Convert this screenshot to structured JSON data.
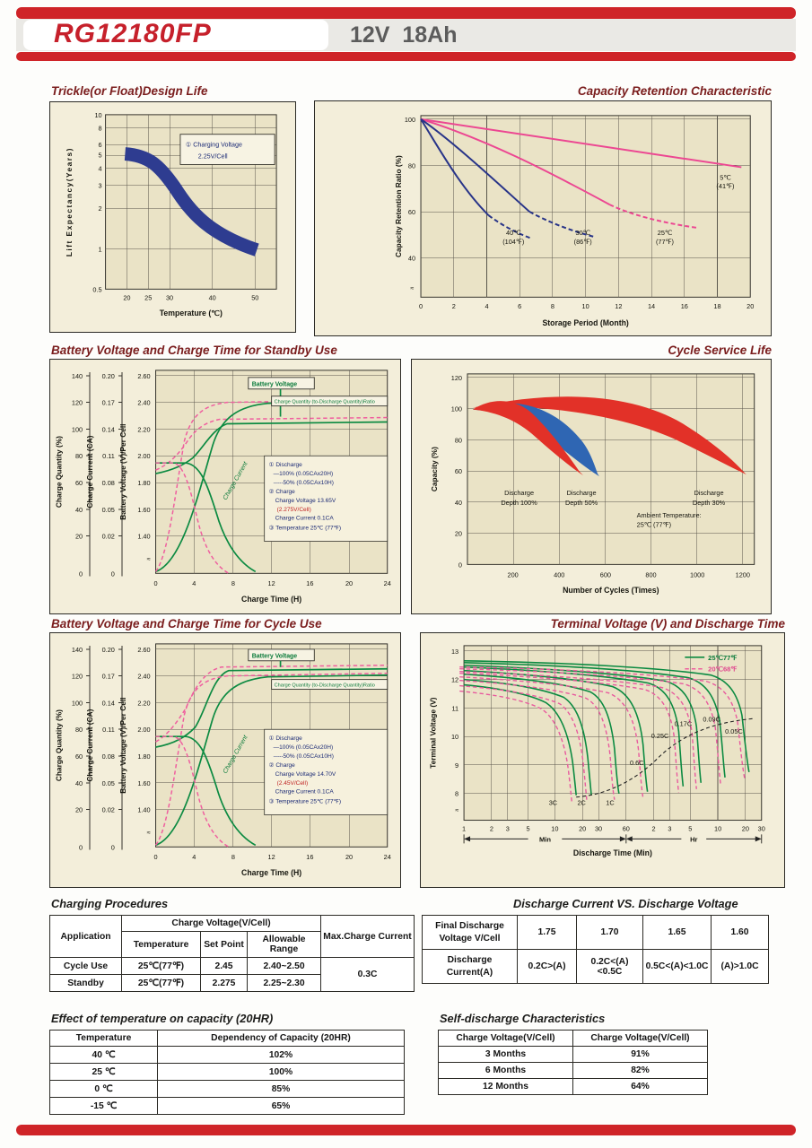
{
  "header": {
    "model": "RG12180FP",
    "rating": "12V  18Ah"
  },
  "charts": {
    "design_life": {
      "title": "Trickle(or Float)Design Life",
      "y_label": "Lift Expectancy(Years)",
      "x_label": "Temperature (℃)",
      "y_ticks": [
        "10",
        "8",
        "6",
        "5",
        "4",
        "3",
        "2",
        "1",
        "0.5"
      ],
      "x_ticks": [
        "20",
        "25",
        "30",
        "40",
        "50"
      ],
      "annotation_line1": "① Charging Voltage",
      "annotation_line2": "2.25V/Cell"
    },
    "capacity_retention": {
      "title": "Capacity Retention  Characteristic",
      "y_label": "Capacity Retention Ratio (%)",
      "x_label": "Storage Period (Month)",
      "y_ticks": [
        "100",
        "80",
        "60",
        "40",
        "≈"
      ],
      "x_ticks": [
        "0",
        "2",
        "4",
        "6",
        "8",
        "10",
        "12",
        "14",
        "16",
        "18",
        "20"
      ],
      "series_labels": {
        "t40a": "40℃",
        "t40b": "(104℉)",
        "t30a": "30℃",
        "t30b": "(86℉)",
        "t25a": "25℃",
        "t25b": "(77℉)",
        "t5a": "5℃",
        "t5b": "(41℉)"
      }
    },
    "standby": {
      "title": "Battery Voltage and Charge Time for Standby Use",
      "cq_label": "Charge Quantity (%)",
      "cc_label": "Charge Current (CA)",
      "bv_label": "Battery Voltage (V)/Per Cell",
      "x_label": "Charge Time (H)",
      "cq_ticks": [
        "140",
        "120",
        "100",
        "80",
        "60",
        "40",
        "20",
        "0"
      ],
      "cc_ticks": [
        "0.20",
        "0.17",
        "0.14",
        "0.11",
        "0.08",
        "0.05",
        "0.02",
        "0"
      ],
      "bv_ticks": [
        "2.60",
        "2.40",
        "2.20",
        "2.00",
        "1.80",
        "1.60",
        "1.40",
        "≈"
      ],
      "x_ticks": [
        "0",
        "4",
        "8",
        "12",
        "16",
        "20",
        "24"
      ],
      "bv_curve_label": "Battery Voltage",
      "cq_curve_label": "Charge Quantity (to-Discharge Quantity)Ratio",
      "cc_curve_label": "Charge Current",
      "legend": [
        "① Discharge",
        "—100% (0.05CAx20H)",
        "-----50% (0.05CAx10H)",
        "② Charge",
        "Charge Voltage 13.65V",
        "(2.275V/Cell)",
        "Charge Current 0.1CA",
        "③ Temperature 25℃ (77℉)"
      ]
    },
    "cycle_life": {
      "title": "Cycle Service Life",
      "y_label": "Capacity (%)",
      "x_label": "Number of Cycles (Times)",
      "y_ticks": [
        "120",
        "100",
        "80",
        "60",
        "40",
        "20",
        "0"
      ],
      "x_ticks": [
        "200",
        "400",
        "600",
        "800",
        "1000",
        "1200"
      ],
      "band_labels": {
        "d100a": "Discharge",
        "d100b": "Depth 100%",
        "d50a": "Discharge",
        "d50b": "Depth 50%",
        "d30a": "Discharge",
        "d30b": "Depth 30%",
        "amb1": "Ambient Temperature:",
        "amb2": "25℃ (77℉)"
      }
    },
    "cycle_use": {
      "title": "Battery Voltage and Charge Time for Cycle Use",
      "cq_label": "Charge Quantity (%)",
      "cc_label": "Charge Current (CA)",
      "bv_label": "Battery Voltage (V)/Per Cell",
      "x_label": "Charge Time (H)",
      "cq_ticks": [
        "140",
        "120",
        "100",
        "80",
        "60",
        "40",
        "20",
        "0"
      ],
      "cc_ticks": [
        "0.20",
        "0.17",
        "0.14",
        "0.11",
        "0.08",
        "0.05",
        "0.02",
        "0"
      ],
      "bv_ticks": [
        "2.60",
        "2.40",
        "2.20",
        "2.00",
        "1.80",
        "1.60",
        "1.40",
        "≈"
      ],
      "x_ticks": [
        "0",
        "4",
        "8",
        "12",
        "16",
        "20",
        "24"
      ],
      "bv_curve_label": "Battery Voltage",
      "cq_curve_label": "Charge Quantity (to-Discharge Quantity)Ratio",
      "cc_curve_label": "Charge Current",
      "legend": [
        "① Discharge",
        "—100% (0.05CAx20H)",
        "-----50% (0.05CAx10H)",
        "② Charge",
        "Charge Voltage 14.70V",
        "(2.45V/Cell)",
        "Charge Current 0.1CA",
        "③ Temperature 25℃ (77℉)"
      ]
    },
    "terminal": {
      "title": "Terminal Voltage (V) and Discharge Time",
      "y_label": "Terminal Voltage (V)",
      "x_label": "Discharge Time (Min)",
      "y_ticks": [
        "13",
        "12",
        "11",
        "10",
        "9",
        "8",
        "≈"
      ],
      "x_ticks_min": [
        "1",
        "2",
        "3",
        "5",
        "10",
        "20",
        "30",
        "60"
      ],
      "x_ticks_hr": [
        "2",
        "3",
        "5",
        "10",
        "20",
        "30"
      ],
      "min_label": "Min",
      "hr_label": "Hr",
      "legend_green": "25℃77℉",
      "legend_pink": "20℃68℉",
      "rate_labels": [
        "3C",
        "2C",
        "1C",
        "0.6C",
        "0.25C",
        "0.17C",
        "0.09C",
        "0.05C"
      ]
    }
  },
  "tables": {
    "charging": {
      "title": "Charging Procedures",
      "h_application": "Application",
      "h_charge_voltage": "Charge Voltage(V/Cell)",
      "h_max_current": "Max.Charge Current",
      "h_temperature": "Temperature",
      "h_set_point": "Set Point",
      "h_allowable": "Allowable Range",
      "rows": [
        [
          "Cycle Use",
          "25℃(77℉)",
          "2.45",
          "2.40~2.50"
        ],
        [
          "Standby",
          "25℃(77℉)",
          "2.275",
          "2.25~2.30"
        ]
      ],
      "max_current": "0.3C"
    },
    "discharge": {
      "title": "Discharge Current VS. Discharge Voltage",
      "row1_label_1": "Final Discharge",
      "row1_label_2": "Voltage V/Cell",
      "row1": [
        "1.75",
        "1.70",
        "1.65",
        "1.60"
      ],
      "row2_label_1": "Discharge",
      "row2_label_2": "Current(A)",
      "row2": [
        "0.2C>(A)",
        "0.2C<(A)<0.5C",
        "0.5C<(A)<1.0C",
        "(A)>1.0C"
      ]
    },
    "temp_capacity": {
      "title": "Effect of temperature on capacity (20HR)",
      "headers": [
        "Temperature",
        "Dependency of Capacity (20HR)"
      ],
      "rows": [
        [
          "40 ℃",
          "102%"
        ],
        [
          "25 ℃",
          "100%"
        ],
        [
          "0 ℃",
          "85%"
        ],
        [
          "-15 ℃",
          "65%"
        ]
      ]
    },
    "self_discharge": {
      "title": "Self-discharge Characteristics",
      "headers": [
        "Charge Voltage(V/Cell)",
        "Charge Voltage(V/Cell)"
      ],
      "rows": [
        [
          "3 Months",
          "91%"
        ],
        [
          "6 Months",
          "82%"
        ],
        [
          "12 Months",
          "64%"
        ]
      ]
    }
  }
}
